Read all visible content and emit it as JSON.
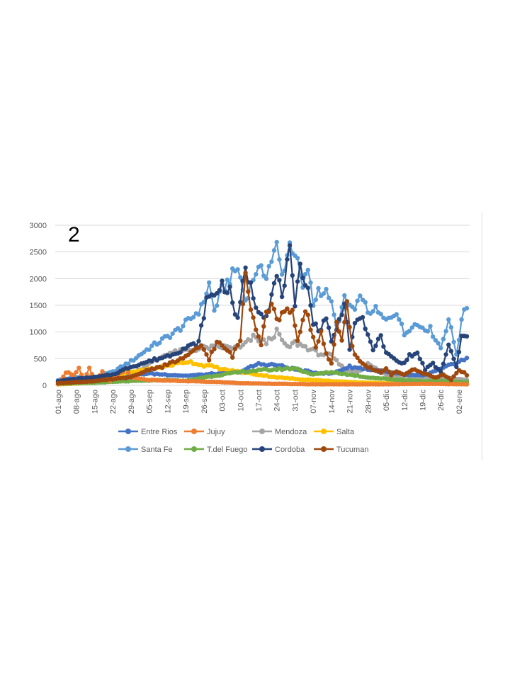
{
  "panel_label": "2",
  "colors": {
    "Entre Rios": "#4472C4",
    "Jujuy": "#ED7D31",
    "Mendoza": "#A5A5A5",
    "Salta": "#FFC000",
    "Santa Fe": "#5B9BD5",
    "T.del Fuego": "#70AD47",
    "Cordoba": "#264478",
    "Tucuman": "#9E480E"
  },
  "chart_data": {
    "type": "line",
    "title": "",
    "xlabel": "",
    "ylabel": "",
    "ylim": [
      0,
      3000
    ],
    "yticks": [
      "0",
      "500",
      "1000",
      "1500",
      "2000",
      "2500",
      "3000"
    ],
    "x_tick_labels": [
      "01-ago",
      "08-ago",
      "15-ago",
      "22-ago",
      "29-ago",
      "05-sep",
      "12-sep",
      "19-sep",
      "26-sep",
      "03-oct",
      "10-oct",
      "17-oct",
      "24-oct",
      "31-oct",
      "07-nov",
      "14-nov",
      "21-nov",
      "28-nov",
      "05-dic",
      "12-dic",
      "19-dic",
      "26-dic",
      "02-ene"
    ],
    "x_tick_interval_days": 7,
    "num_points": 158,
    "grid": "horizontal",
    "legend_position": "bottom",
    "series": [
      {
        "name": "Entre Rios",
        "keypoints": [
          [
            0,
            80
          ],
          [
            7,
            130
          ],
          [
            14,
            150
          ],
          [
            21,
            170
          ],
          [
            28,
            200
          ],
          [
            35,
            220
          ],
          [
            42,
            200
          ],
          [
            49,
            180
          ],
          [
            56,
            200
          ],
          [
            63,
            230
          ],
          [
            70,
            260
          ],
          [
            77,
            400
          ],
          [
            84,
            380
          ],
          [
            91,
            300
          ],
          [
            98,
            240
          ],
          [
            105,
            220
          ],
          [
            112,
            350
          ],
          [
            119,
            300
          ],
          [
            126,
            250
          ],
          [
            133,
            200
          ],
          [
            140,
            180
          ],
          [
            147,
            300
          ],
          [
            154,
            450
          ],
          [
            157,
            500
          ]
        ]
      },
      {
        "name": "Jujuy",
        "keypoints": [
          [
            0,
            20
          ],
          [
            3,
            250
          ],
          [
            6,
            200
          ],
          [
            8,
            320
          ],
          [
            10,
            80
          ],
          [
            12,
            320
          ],
          [
            14,
            80
          ],
          [
            17,
            250
          ],
          [
            20,
            80
          ],
          [
            23,
            200
          ],
          [
            26,
            300
          ],
          [
            28,
            150
          ],
          [
            35,
            100
          ],
          [
            49,
            80
          ],
          [
            63,
            60
          ],
          [
            70,
            40
          ],
          [
            84,
            30
          ],
          [
            98,
            20
          ],
          [
            112,
            20
          ],
          [
            126,
            20
          ],
          [
            140,
            30
          ],
          [
            157,
            20
          ]
        ]
      },
      {
        "name": "Mendoza",
        "keypoints": [
          [
            0,
            40
          ],
          [
            14,
            80
          ],
          [
            28,
            200
          ],
          [
            35,
            400
          ],
          [
            42,
            600
          ],
          [
            49,
            650
          ],
          [
            56,
            700
          ],
          [
            63,
            720
          ],
          [
            70,
            700
          ],
          [
            75,
            900
          ],
          [
            80,
            800
          ],
          [
            84,
            1000
          ],
          [
            88,
            700
          ],
          [
            91,
            800
          ],
          [
            96,
            700
          ],
          [
            100,
            600
          ],
          [
            105,
            550
          ],
          [
            110,
            300
          ],
          [
            115,
            250
          ],
          [
            119,
            400
          ],
          [
            126,
            200
          ],
          [
            133,
            180
          ],
          [
            140,
            160
          ],
          [
            147,
            150
          ],
          [
            157,
            100
          ]
        ]
      },
      {
        "name": "Salta",
        "keypoints": [
          [
            0,
            20
          ],
          [
            14,
            50
          ],
          [
            21,
            150
          ],
          [
            28,
            250
          ],
          [
            35,
            300
          ],
          [
            40,
            350
          ],
          [
            45,
            400
          ],
          [
            50,
            450
          ],
          [
            55,
            380
          ],
          [
            60,
            350
          ],
          [
            63,
            300
          ],
          [
            70,
            250
          ],
          [
            77,
            200
          ],
          [
            84,
            150
          ],
          [
            91,
            120
          ],
          [
            98,
            100
          ],
          [
            105,
            80
          ],
          [
            112,
            60
          ],
          [
            119,
            50
          ],
          [
            126,
            40
          ],
          [
            140,
            30
          ],
          [
            157,
            30
          ]
        ]
      },
      {
        "name": "Santa Fe",
        "keypoints": [
          [
            0,
            100
          ],
          [
            7,
            150
          ],
          [
            14,
            150
          ],
          [
            21,
            250
          ],
          [
            28,
            450
          ],
          [
            35,
            700
          ],
          [
            40,
            850
          ],
          [
            45,
            1000
          ],
          [
            50,
            1200
          ],
          [
            55,
            1450
          ],
          [
            58,
            1900
          ],
          [
            60,
            1400
          ],
          [
            63,
            1800
          ],
          [
            66,
            2000
          ],
          [
            69,
            2200
          ],
          [
            72,
            1600
          ],
          [
            76,
            2150
          ],
          [
            80,
            2100
          ],
          [
            84,
            2600
          ],
          [
            86,
            2050
          ],
          [
            89,
            2650
          ],
          [
            91,
            2500
          ],
          [
            94,
            1800
          ],
          [
            96,
            2200
          ],
          [
            98,
            1500
          ],
          [
            100,
            1800
          ],
          [
            104,
            1700
          ],
          [
            107,
            1100
          ],
          [
            110,
            1600
          ],
          [
            112,
            1500
          ],
          [
            114,
            1400
          ],
          [
            117,
            1700
          ],
          [
            119,
            1300
          ],
          [
            121,
            1450
          ],
          [
            124,
            1300
          ],
          [
            126,
            1200
          ],
          [
            130,
            1400
          ],
          [
            133,
            950
          ],
          [
            136,
            1150
          ],
          [
            140,
            1100
          ],
          [
            143,
            1050
          ],
          [
            147,
            700
          ],
          [
            150,
            1250
          ],
          [
            153,
            600
          ],
          [
            156,
            1450
          ],
          [
            157,
            1500
          ]
        ]
      },
      {
        "name": "T.del Fuego",
        "keypoints": [
          [
            0,
            30
          ],
          [
            14,
            50
          ],
          [
            28,
            80
          ],
          [
            42,
            100
          ],
          [
            49,
            80
          ],
          [
            56,
            150
          ],
          [
            63,
            200
          ],
          [
            70,
            250
          ],
          [
            77,
            280
          ],
          [
            84,
            300
          ],
          [
            91,
            320
          ],
          [
            98,
            200
          ],
          [
            105,
            250
          ],
          [
            112,
            200
          ],
          [
            119,
            150
          ],
          [
            126,
            120
          ],
          [
            133,
            100
          ],
          [
            140,
            80
          ],
          [
            147,
            80
          ],
          [
            157,
            60
          ]
        ]
      },
      {
        "name": "Cordoba",
        "keypoints": [
          [
            0,
            80
          ],
          [
            7,
            120
          ],
          [
            14,
            150
          ],
          [
            21,
            200
          ],
          [
            28,
            350
          ],
          [
            35,
            450
          ],
          [
            42,
            550
          ],
          [
            49,
            700
          ],
          [
            54,
            800
          ],
          [
            57,
            1600
          ],
          [
            60,
            1700
          ],
          [
            63,
            1900
          ],
          [
            66,
            1750
          ],
          [
            69,
            1200
          ],
          [
            72,
            2200
          ],
          [
            76,
            1500
          ],
          [
            80,
            1300
          ],
          [
            84,
            2050
          ],
          [
            86,
            1700
          ],
          [
            89,
            2500
          ],
          [
            91,
            1400
          ],
          [
            93,
            2300
          ],
          [
            96,
            1800
          ],
          [
            98,
            1200
          ],
          [
            100,
            1000
          ],
          [
            103,
            1300
          ],
          [
            105,
            800
          ],
          [
            108,
            1200
          ],
          [
            110,
            1600
          ],
          [
            112,
            700
          ],
          [
            114,
            1100
          ],
          [
            117,
            1300
          ],
          [
            119,
            900
          ],
          [
            121,
            700
          ],
          [
            124,
            900
          ],
          [
            126,
            600
          ],
          [
            129,
            500
          ],
          [
            132,
            400
          ],
          [
            135,
            550
          ],
          [
            138,
            600
          ],
          [
            141,
            300
          ],
          [
            144,
            400
          ],
          [
            147,
            250
          ],
          [
            150,
            750
          ],
          [
            153,
            350
          ],
          [
            155,
            900
          ],
          [
            157,
            900
          ]
        ]
      },
      {
        "name": "Tucuman",
        "keypoints": [
          [
            0,
            40
          ],
          [
            14,
            80
          ],
          [
            28,
            150
          ],
          [
            35,
            300
          ],
          [
            40,
            350
          ],
          [
            45,
            450
          ],
          [
            50,
            550
          ],
          [
            55,
            750
          ],
          [
            58,
            500
          ],
          [
            61,
            800
          ],
          [
            64,
            700
          ],
          [
            67,
            550
          ],
          [
            70,
            850
          ],
          [
            72,
            2150
          ],
          [
            74,
            1500
          ],
          [
            76,
            1100
          ],
          [
            78,
            800
          ],
          [
            80,
            1400
          ],
          [
            82,
            1500
          ],
          [
            85,
            1200
          ],
          [
            88,
            1500
          ],
          [
            90,
            1350
          ],
          [
            92,
            800
          ],
          [
            95,
            1400
          ],
          [
            97,
            1100
          ],
          [
            99,
            700
          ],
          [
            101,
            1000
          ],
          [
            103,
            600
          ],
          [
            105,
            400
          ],
          [
            107,
            1200
          ],
          [
            109,
            800
          ],
          [
            111,
            1500
          ],
          [
            113,
            700
          ],
          [
            115,
            500
          ],
          [
            117,
            400
          ],
          [
            119,
            350
          ],
          [
            121,
            300
          ],
          [
            124,
            250
          ],
          [
            126,
            300
          ],
          [
            128,
            200
          ],
          [
            130,
            250
          ],
          [
            133,
            200
          ],
          [
            136,
            300
          ],
          [
            139,
            250
          ],
          [
            142,
            200
          ],
          [
            145,
            150
          ],
          [
            148,
            200
          ],
          [
            151,
            100
          ],
          [
            154,
            300
          ],
          [
            157,
            200
          ]
        ]
      }
    ]
  }
}
